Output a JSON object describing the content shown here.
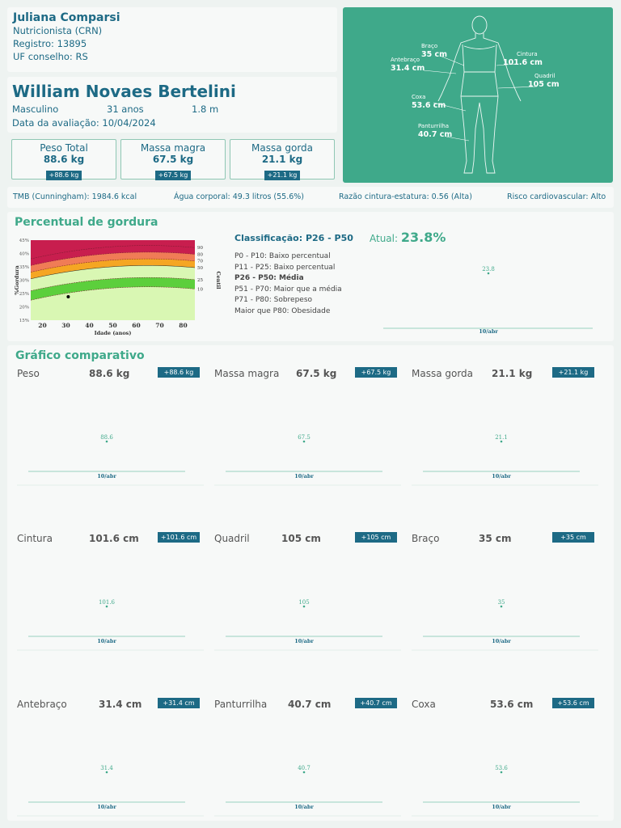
{
  "nutritionist": {
    "name": "Juliana Comparsi",
    "title": "Nutricionista (CRN)",
    "registry": "Registro: 13895",
    "council": "UF conselho: RS"
  },
  "patient": {
    "name": "William Novaes Bertelini",
    "sex": "Masculino",
    "age": "31 anos",
    "height": "1.8 m",
    "date": "Data da avaliação: 10/04/2024"
  },
  "body_measures": [
    {
      "label": "Braço",
      "value": "35 cm"
    },
    {
      "label": "Cintura",
      "value": "101.6 cm"
    },
    {
      "label": "Antebraço",
      "value": "31.4 cm"
    },
    {
      "label": "Quadril",
      "value": "105 cm"
    },
    {
      "label": "Coxa",
      "value": "53.6 cm"
    },
    {
      "label": "Panturrilha",
      "value": "40.7 cm"
    }
  ],
  "stats": [
    {
      "title": "Peso Total",
      "value": "88.6 kg",
      "delta": "+88.6 kg"
    },
    {
      "title": "Massa magra",
      "value": "67.5 kg",
      "delta": "+67.5 kg"
    },
    {
      "title": "Massa gorda",
      "value": "21.1 kg",
      "delta": "+21.1 kg"
    }
  ],
  "metrics": {
    "tmb": "TMB (Cunningham): 1984.6 kcal",
    "water": "Água corporal: 49.3 litros (55.6%)",
    "ratio": "Razão cintura-estatura: 0.56 (Alta)",
    "risk": "Risco cardiovascular: Alto"
  },
  "fat": {
    "title": "Percentual de gordura",
    "classification": "Classificação: P26 - P50",
    "current_label": "Atual:",
    "current_value": "23.8%",
    "percentiles": [
      "P0 - P10: Baixo percentual",
      "P11 - P25: Baixo percentual",
      "P26 - P50: Média",
      "P51 - P70: Maior que a média",
      "P71 - P80: Sobrepeso",
      "Maior que P80: Obesidade"
    ],
    "chart": {
      "ylabel": "%Gordura",
      "xlabel": "Idade (anos)",
      "right_label": "Centil",
      "yticks": [
        "45%",
        "40%",
        "35%",
        "30%",
        "25%",
        "20%",
        "15%"
      ],
      "xticks": [
        "20",
        "30",
        "40",
        "50",
        "60",
        "70",
        "80"
      ],
      "centiles": [
        "90",
        "80",
        "70",
        "50",
        "25",
        "10"
      ],
      "point": {
        "age": 31,
        "fat": 23.8
      }
    },
    "trend": {
      "value": "23.8",
      "date": "10/abr"
    }
  },
  "comparative": {
    "title": "Gráfico comparativo",
    "items": [
      {
        "label": "Peso",
        "value": "88.6 kg",
        "delta": "+88.6 kg",
        "point": "88.6",
        "date": "10/abr"
      },
      {
        "label": "Massa magra",
        "value": "67.5 kg",
        "delta": "+67.5 kg",
        "point": "67.5",
        "date": "10/abr"
      },
      {
        "label": "Massa gorda",
        "value": "21.1 kg",
        "delta": "+21.1 kg",
        "point": "21.1",
        "date": "10/abr"
      },
      {
        "label": "Cintura",
        "value": "101.6 cm",
        "delta": "+101.6 cm",
        "point": "101.6",
        "date": "10/abr"
      },
      {
        "label": "Quadril",
        "value": "105 cm",
        "delta": "+105 cm",
        "point": "105",
        "date": "10/abr"
      },
      {
        "label": "Braço",
        "value": "35 cm",
        "delta": "+35 cm",
        "point": "35",
        "date": "10/abr"
      },
      {
        "label": "Antebraço",
        "value": "31.4 cm",
        "delta": "+31.4 cm",
        "point": "31.4",
        "date": "10/abr"
      },
      {
        "label": "Panturrilha",
        "value": "40.7 cm",
        "delta": "+40.7 cm",
        "point": "40.7",
        "date": "10/abr"
      },
      {
        "label": "Coxa",
        "value": "53.6 cm",
        "delta": "+53.6 cm",
        "point": "53.6",
        "date": "10/abr"
      }
    ]
  },
  "colors": {
    "accent": "#3fa98a",
    "primary": "#1d6a85",
    "badge": "#1d6a85"
  }
}
